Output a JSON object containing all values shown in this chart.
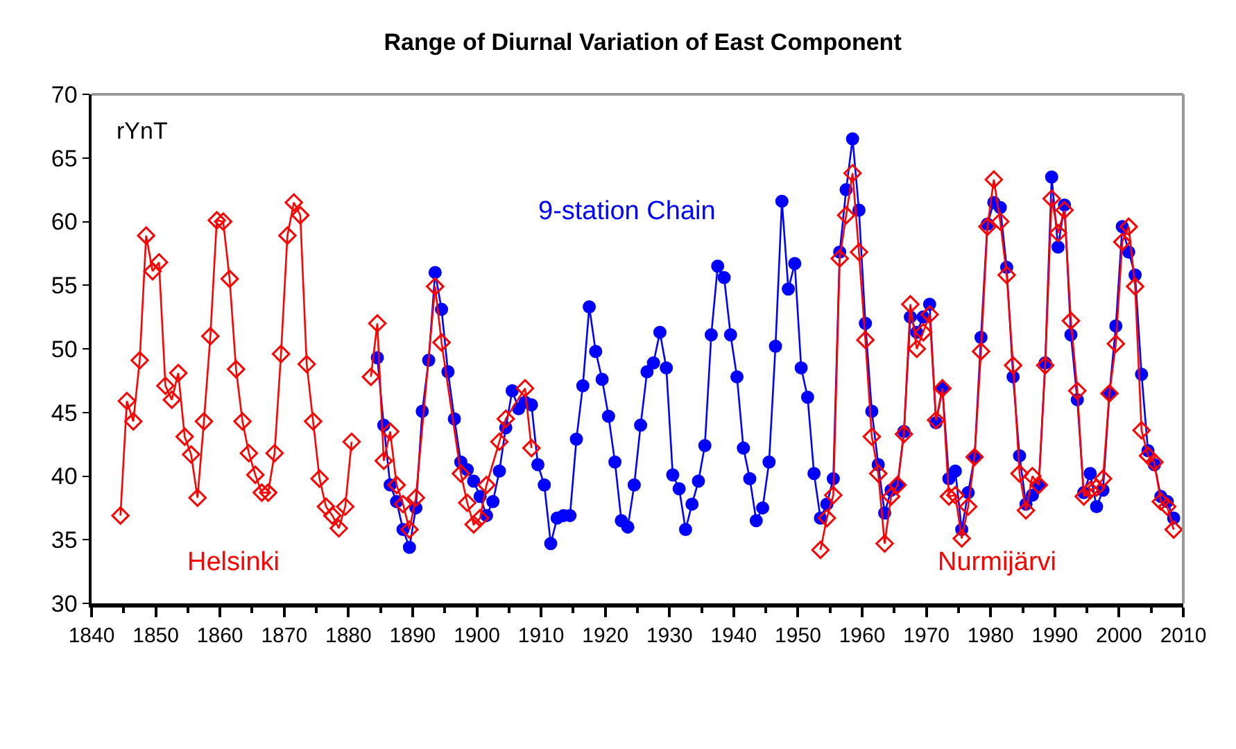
{
  "chart_data": {
    "type": "line",
    "title": "Range of Diurnal Variation of East Component",
    "ylabel": "rYnT",
    "xlim": [
      1840,
      2010
    ],
    "xticks": [
      1840,
      1850,
      1860,
      1870,
      1880,
      1890,
      1900,
      1910,
      1920,
      1930,
      1940,
      1950,
      1960,
      1970,
      1980,
      1990,
      2000,
      2010
    ],
    "ylim": [
      30,
      70
    ],
    "yticks": [
      30,
      35,
      40,
      45,
      50,
      55,
      60,
      65,
      70
    ],
    "grid": false,
    "legend": false,
    "line_style": "solid",
    "series": [
      {
        "name": "Helsinki",
        "color": "#ff0000",
        "marker": "diamond",
        "x": [
          1844.5,
          1845.5,
          1846.5,
          1847.5,
          1848.5,
          1849.5,
          1850.5,
          1851.5,
          1852.5,
          1853.5,
          1854.5,
          1855.5,
          1856.5,
          1857.5,
          1858.5,
          1859.5,
          1860.5,
          1861.5,
          1862.5,
          1863.5,
          1864.5,
          1865.5,
          1866.5,
          1867.5,
          1868.5,
          1869.5,
          1870.5,
          1871.5,
          1872.5,
          1873.5,
          1874.5,
          1875.5,
          1876.5,
          1877.5,
          1878.5,
          1879.5,
          1880.5,
          1881.5,
          1883.5,
          1884.5,
          1885.5,
          1886.5,
          1887.5,
          1888.5,
          1889.5,
          1890.5,
          1893.5,
          1894.5,
          1897.5,
          1898.5,
          1899.5,
          1900.5,
          1901.5,
          1903.5,
          1904.5,
          1907.5,
          1908.5
        ],
        "values": [
          36.9,
          45.9,
          44.3,
          49.1,
          58.9,
          56.1,
          56.8,
          47.1,
          46.0,
          48.1,
          43.1,
          41.7,
          38.3,
          44.3,
          51.0,
          60.1,
          60.0,
          55.5,
          48.4,
          44.3,
          41.8,
          40.1,
          38.7,
          38.7,
          41.8,
          49.6,
          58.9,
          61.5,
          60.5,
          48.8,
          44.3,
          39.8,
          37.6,
          36.9,
          35.9,
          37.6,
          42.7,
          null,
          47.8,
          52.0,
          41.2,
          43.5,
          39.3,
          37.8,
          35.8,
          38.3,
          54.9,
          50.5,
          40.2,
          37.9,
          36.2,
          36.7,
          39.3,
          42.7,
          44.5,
          46.9,
          42.2
        ]
      },
      {
        "name": "9-station Chain",
        "color": "#0000ff",
        "marker": "circle",
        "x": [
          1884.5,
          1885.5,
          1886.5,
          1887.5,
          1888.5,
          1889.5,
          1890.5,
          1891.5,
          1892.5,
          1893.5,
          1894.5,
          1895.5,
          1896.5,
          1897.5,
          1898.5,
          1899.5,
          1900.5,
          1901.5,
          1902.5,
          1903.5,
          1904.5,
          1905.5,
          1906.5,
          1907.5,
          1908.5,
          1909.5,
          1910.5,
          1911.5,
          1912.5,
          1913.5,
          1914.5,
          1915.5,
          1916.5,
          1917.5,
          1918.5,
          1919.5,
          1920.5,
          1921.5,
          1922.5,
          1923.5,
          1924.5,
          1925.5,
          1926.5,
          1927.5,
          1928.5,
          1929.5,
          1930.5,
          1931.5,
          1932.5,
          1933.5,
          1934.5,
          1935.5,
          1936.5,
          1937.5,
          1938.5,
          1939.5,
          1940.5,
          1941.5,
          1942.5,
          1943.5,
          1944.5,
          1945.5,
          1946.5,
          1947.5,
          1948.5,
          1949.5,
          1950.5,
          1951.5,
          1952.5,
          1953.5,
          1954.5,
          1955.5,
          1956.5,
          1957.5,
          1958.5,
          1959.5,
          1960.5,
          1961.5,
          1962.5,
          1963.5,
          1964.5,
          1965.5,
          1966.5,
          1967.5,
          1968.5,
          1969.5,
          1970.5,
          1971.5,
          1972.5,
          1973.5,
          1974.5,
          1975.5,
          1976.5,
          1977.5,
          1978.5,
          1979.5,
          1980.5,
          1981.5,
          1982.5,
          1983.5,
          1984.5,
          1985.5,
          1986.5,
          1987.5,
          1988.5,
          1989.5,
          1990.5,
          1991.5,
          1992.5,
          1993.5,
          1994.5,
          1995.5,
          1996.5,
          1997.5,
          1998.5,
          1999.5,
          2000.5,
          2001.5,
          2002.5,
          2003.5,
          2004.5,
          2005.5,
          2006.5,
          2007.5,
          2008.5
        ],
        "values": [
          49.3,
          44.0,
          39.3,
          38.0,
          35.8,
          34.4,
          37.5,
          45.1,
          49.1,
          56.0,
          53.1,
          48.2,
          44.5,
          41.1,
          40.5,
          39.6,
          38.4,
          36.9,
          38.0,
          40.4,
          43.8,
          46.7,
          45.3,
          45.8,
          45.6,
          40.9,
          39.3,
          34.7,
          36.7,
          36.9,
          36.9,
          42.9,
          47.1,
          53.3,
          49.8,
          47.6,
          44.7,
          41.1,
          36.5,
          36.0,
          39.3,
          44.0,
          48.2,
          48.9,
          51.3,
          48.5,
          40.1,
          39.0,
          35.8,
          37.8,
          39.6,
          42.4,
          51.1,
          56.5,
          55.6,
          51.1,
          47.8,
          42.2,
          39.8,
          36.5,
          37.5,
          41.1,
          50.2,
          61.6,
          54.7,
          56.7,
          48.5,
          46.2,
          40.2,
          36.7,
          37.8,
          39.8,
          57.6,
          62.5,
          66.5,
          60.9,
          52.0,
          45.1,
          40.9,
          37.1,
          38.9,
          39.3,
          43.5,
          52.5,
          51.3,
          52.5,
          53.5,
          44.2,
          46.9,
          39.8,
          40.4,
          35.8,
          38.7,
          41.5,
          50.9,
          59.8,
          61.5,
          61.1,
          56.4,
          47.8,
          41.6,
          37.8,
          38.5,
          39.3,
          48.9,
          63.5,
          58.0,
          61.3,
          51.1,
          46.0,
          38.7,
          40.2,
          37.6,
          38.9,
          46.5,
          51.8,
          59.6,
          57.6,
          55.8,
          48.0,
          42.0,
          40.9,
          38.4,
          38.0,
          36.7
        ]
      },
      {
        "name": "Nurmijärvi",
        "color": "#ff0000",
        "marker": "diamond",
        "x": [
          1953.5,
          1954.5,
          1955.5,
          1956.5,
          1957.5,
          1958.5,
          1959.5,
          1960.5,
          1961.5,
          1962.5,
          1963.5,
          1964.5,
          1965.5,
          1966.5,
          1967.5,
          1968.5,
          1969.5,
          1970.5,
          1971.5,
          1972.5,
          1973.5,
          1974.5,
          1975.5,
          1976.5,
          1977.5,
          1978.5,
          1979.5,
          1980.5,
          1981.5,
          1982.5,
          1983.5,
          1984.5,
          1985.5,
          1986.5,
          1987.5,
          1988.5,
          1989.5,
          1990.5,
          1991.5,
          1992.5,
          1993.5,
          1994.5,
          1995.5,
          1996.5,
          1997.5,
          1998.5,
          1999.5,
          2000.5,
          2001.5,
          2002.5,
          2003.5,
          2004.5,
          2005.5,
          2006.5,
          2007.5,
          2008.5
        ],
        "values": [
          34.2,
          36.7,
          38.5,
          57.1,
          60.5,
          63.8,
          57.6,
          50.7,
          43.1,
          40.2,
          34.7,
          38.4,
          39.3,
          43.3,
          53.5,
          50.0,
          51.3,
          52.7,
          44.4,
          46.9,
          38.4,
          38.5,
          35.1,
          37.6,
          41.5,
          49.8,
          59.6,
          63.3,
          60.0,
          55.8,
          48.7,
          40.2,
          37.3,
          40.0,
          39.3,
          48.7,
          61.8,
          59.1,
          60.9,
          52.2,
          46.7,
          38.4,
          38.9,
          39.1,
          39.8,
          46.5,
          50.4,
          58.4,
          59.6,
          54.9,
          43.6,
          41.6,
          41.1,
          38.0,
          37.6,
          35.8
        ]
      }
    ]
  }
}
